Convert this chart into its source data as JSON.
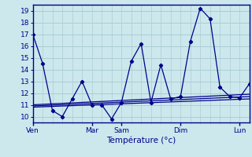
{
  "background_color": "#cce8ec",
  "grid_color": "#aacdd4",
  "line_color": "#00008b",
  "xlabel": "Température (°c)",
  "ylim": [
    9.5,
    19.5
  ],
  "xlim": [
    0,
    132
  ],
  "yticks": [
    10,
    11,
    12,
    13,
    14,
    15,
    16,
    17,
    18,
    19
  ],
  "x_day_labels": [
    "Ven",
    "Mar",
    "Sam",
    "Dim",
    "Lun"
  ],
  "x_day_positions": [
    0,
    36,
    54,
    90,
    126
  ],
  "lines": [
    {
      "x": [
        0,
        6,
        12,
        18,
        24,
        30,
        36,
        42,
        48,
        54,
        60,
        66,
        72,
        78,
        84,
        90,
        96,
        102,
        108,
        114,
        120,
        126,
        132
      ],
      "y": [
        17.0,
        14.5,
        10.5,
        10.0,
        11.5,
        13.0,
        11.0,
        11.0,
        9.8,
        11.2,
        14.7,
        16.2,
        11.2,
        14.4,
        11.5,
        11.7,
        16.4,
        19.2,
        18.3,
        12.5,
        11.7,
        11.6,
        12.8
      ],
      "marker": true
    },
    {
      "x": [
        0,
        132
      ],
      "y": [
        10.8,
        11.5
      ],
      "marker": false
    },
    {
      "x": [
        0,
        132
      ],
      "y": [
        10.9,
        11.7
      ],
      "marker": false
    },
    {
      "x": [
        0,
        132
      ],
      "y": [
        11.0,
        11.9
      ],
      "marker": false
    }
  ]
}
